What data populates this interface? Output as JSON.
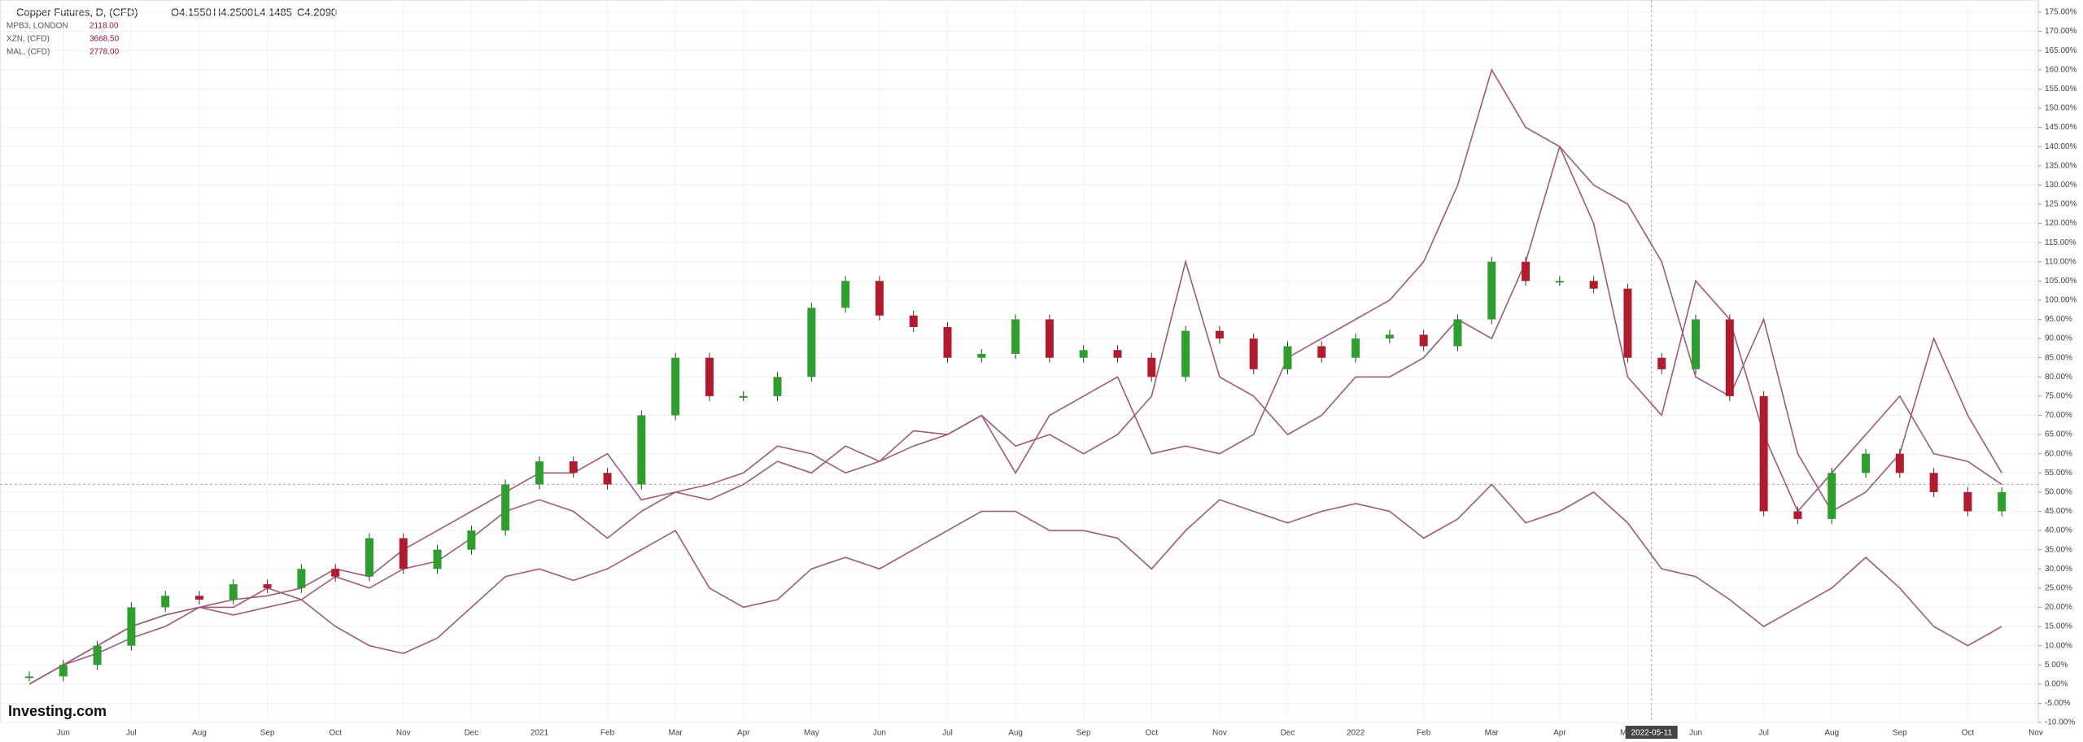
{
  "chart_data": {
    "type": "line",
    "title": "Copper Futures, D, (CFD)",
    "ohlc": [
      "O4.1550",
      "H4.2500",
      "L4.1485",
      "C4.2090"
    ],
    "brand": "Investing.com",
    "crosshair_label": "2022-05-11",
    "categories": [
      null,
      "Jun",
      null,
      "Jul",
      null,
      "Aug",
      null,
      "Sep",
      null,
      "Oct",
      null,
      "Nov",
      null,
      "Dec",
      null,
      "2021",
      null,
      "Feb",
      null,
      "Mar",
      null,
      "Apr",
      null,
      "May",
      null,
      "Jun",
      null,
      "Jul",
      null,
      "Aug",
      null,
      "Sep",
      null,
      "Oct",
      null,
      "Nov",
      null,
      "Dec",
      null,
      "2022",
      null,
      "Feb",
      null,
      "Mar",
      null,
      "Apr",
      null,
      "May",
      null,
      "Jun",
      null,
      "Jul",
      null,
      "Aug",
      null,
      "Sep",
      null,
      "Oct",
      null,
      "Nov"
    ],
    "series": [
      {
        "name": "Copper Futures",
        "style": "candle",
        "color": "#2e9e2e",
        "down_color": "#b01c2e",
        "values": [
          2,
          5,
          10,
          20,
          23,
          22,
          26,
          25,
          30,
          28,
          38,
          30,
          35,
          40,
          52,
          58,
          55,
          52,
          70,
          85,
          75,
          75,
          80,
          98,
          105,
          96,
          93,
          85,
          86,
          95,
          85,
          87,
          85,
          80,
          92,
          90,
          82,
          88,
          85,
          90,
          91,
          88,
          95,
          110,
          105,
          105,
          103,
          85,
          82,
          95,
          75,
          45,
          43,
          55,
          60,
          55,
          50,
          45,
          50,
          null
        ]
      },
      {
        "name": "MPB3, LONDON",
        "price": "2118.00",
        "color": "#9e5a78",
        "values": [
          0,
          5,
          10,
          15,
          18,
          20,
          18,
          20,
          22,
          15,
          10,
          8,
          12,
          20,
          28,
          30,
          27,
          30,
          35,
          40,
          25,
          20,
          22,
          30,
          33,
          30,
          35,
          40,
          45,
          45,
          40,
          40,
          38,
          30,
          40,
          48,
          45,
          42,
          45,
          47,
          45,
          38,
          43,
          52,
          42,
          45,
          50,
          42,
          30,
          28,
          22,
          15,
          20,
          25,
          33,
          25,
          15,
          10,
          15,
          null
        ]
      },
      {
        "name": "XZN, (CFD)",
        "price": "3668.50",
        "color": "#9e5a78",
        "values": [
          0,
          5,
          10,
          15,
          18,
          20,
          22,
          23,
          25,
          30,
          28,
          35,
          40,
          45,
          50,
          55,
          55,
          60,
          48,
          50,
          52,
          55,
          62,
          60,
          55,
          58,
          62,
          65,
          70,
          62,
          65,
          60,
          65,
          75,
          110,
          80,
          75,
          65,
          70,
          80,
          80,
          85,
          95,
          90,
          110,
          140,
          130,
          125,
          110,
          80,
          75,
          95,
          60,
          45,
          50,
          60,
          90,
          70,
          55,
          null
        ]
      },
      {
        "name": "MAL, (CFD)",
        "price": "2778.00",
        "color": "#9e5a78",
        "values": [
          0,
          5,
          8,
          12,
          15,
          20,
          20,
          25,
          22,
          28,
          25,
          30,
          32,
          38,
          45,
          48,
          45,
          38,
          45,
          50,
          48,
          52,
          58,
          55,
          62,
          58,
          66,
          65,
          70,
          55,
          70,
          75,
          80,
          60,
          62,
          60,
          65,
          85,
          90,
          95,
          100,
          110,
          130,
          160,
          145,
          140,
          120,
          80,
          70,
          105,
          95,
          65,
          45,
          55,
          65,
          75,
          60,
          58,
          52,
          null
        ]
      }
    ],
    "ylim": [
      -10,
      175
    ],
    "yticks": [
      {
        "value": -10,
        "label": "-10.00%"
      },
      {
        "value": -5,
        "label": "-5.00%"
      },
      {
        "value": 0,
        "label": "0.00%"
      },
      {
        "value": 5,
        "label": "5.00%"
      },
      {
        "value": 10,
        "label": "10.00%"
      },
      {
        "value": 15,
        "label": "15.00%"
      },
      {
        "value": 20,
        "label": "20.00%"
      },
      {
        "value": 25,
        "label": "25.00%"
      },
      {
        "value": 30,
        "label": "30.00%"
      },
      {
        "value": 35,
        "label": "35.00%"
      },
      {
        "value": 40,
        "label": "40.00%"
      },
      {
        "value": 45,
        "label": "45.00%"
      },
      {
        "value": 50,
        "label": "50.00%"
      },
      {
        "value": 55,
        "label": "55.00%"
      },
      {
        "value": 60,
        "label": "60.00%"
      },
      {
        "value": 65,
        "label": "65.00%"
      },
      {
        "value": 70,
        "label": "70.00%"
      },
      {
        "value": 75,
        "label": "75.00%"
      },
      {
        "value": 80,
        "label": "80.00%"
      },
      {
        "value": 85,
        "label": "85.00%"
      },
      {
        "value": 90,
        "label": "90.00%"
      },
      {
        "value": 95,
        "label": "95.00%"
      },
      {
        "value": 100,
        "label": "100.00%"
      },
      {
        "value": 105,
        "label": "105.00%"
      },
      {
        "value": 110,
        "label": "110.00%"
      },
      {
        "value": 115,
        "label": "115.00%"
      },
      {
        "value": 120,
        "label": "120.00%"
      },
      {
        "value": 125,
        "label": "125.00%"
      },
      {
        "value": 130,
        "label": "130.00%"
      },
      {
        "value": 135,
        "label": "135.00%"
      },
      {
        "value": 140,
        "label": "140.00%"
      },
      {
        "value": 145,
        "label": "145.00%"
      },
      {
        "value": 150,
        "label": "150.00%"
      },
      {
        "value": 155,
        "label": "155.00%"
      },
      {
        "value": 160,
        "label": "160.00%"
      },
      {
        "value": 165,
        "label": "165.00%"
      },
      {
        "value": 170,
        "label": "170.00%"
      },
      {
        "value": 175,
        "label": "175.00%"
      }
    ],
    "grid": true
  }
}
